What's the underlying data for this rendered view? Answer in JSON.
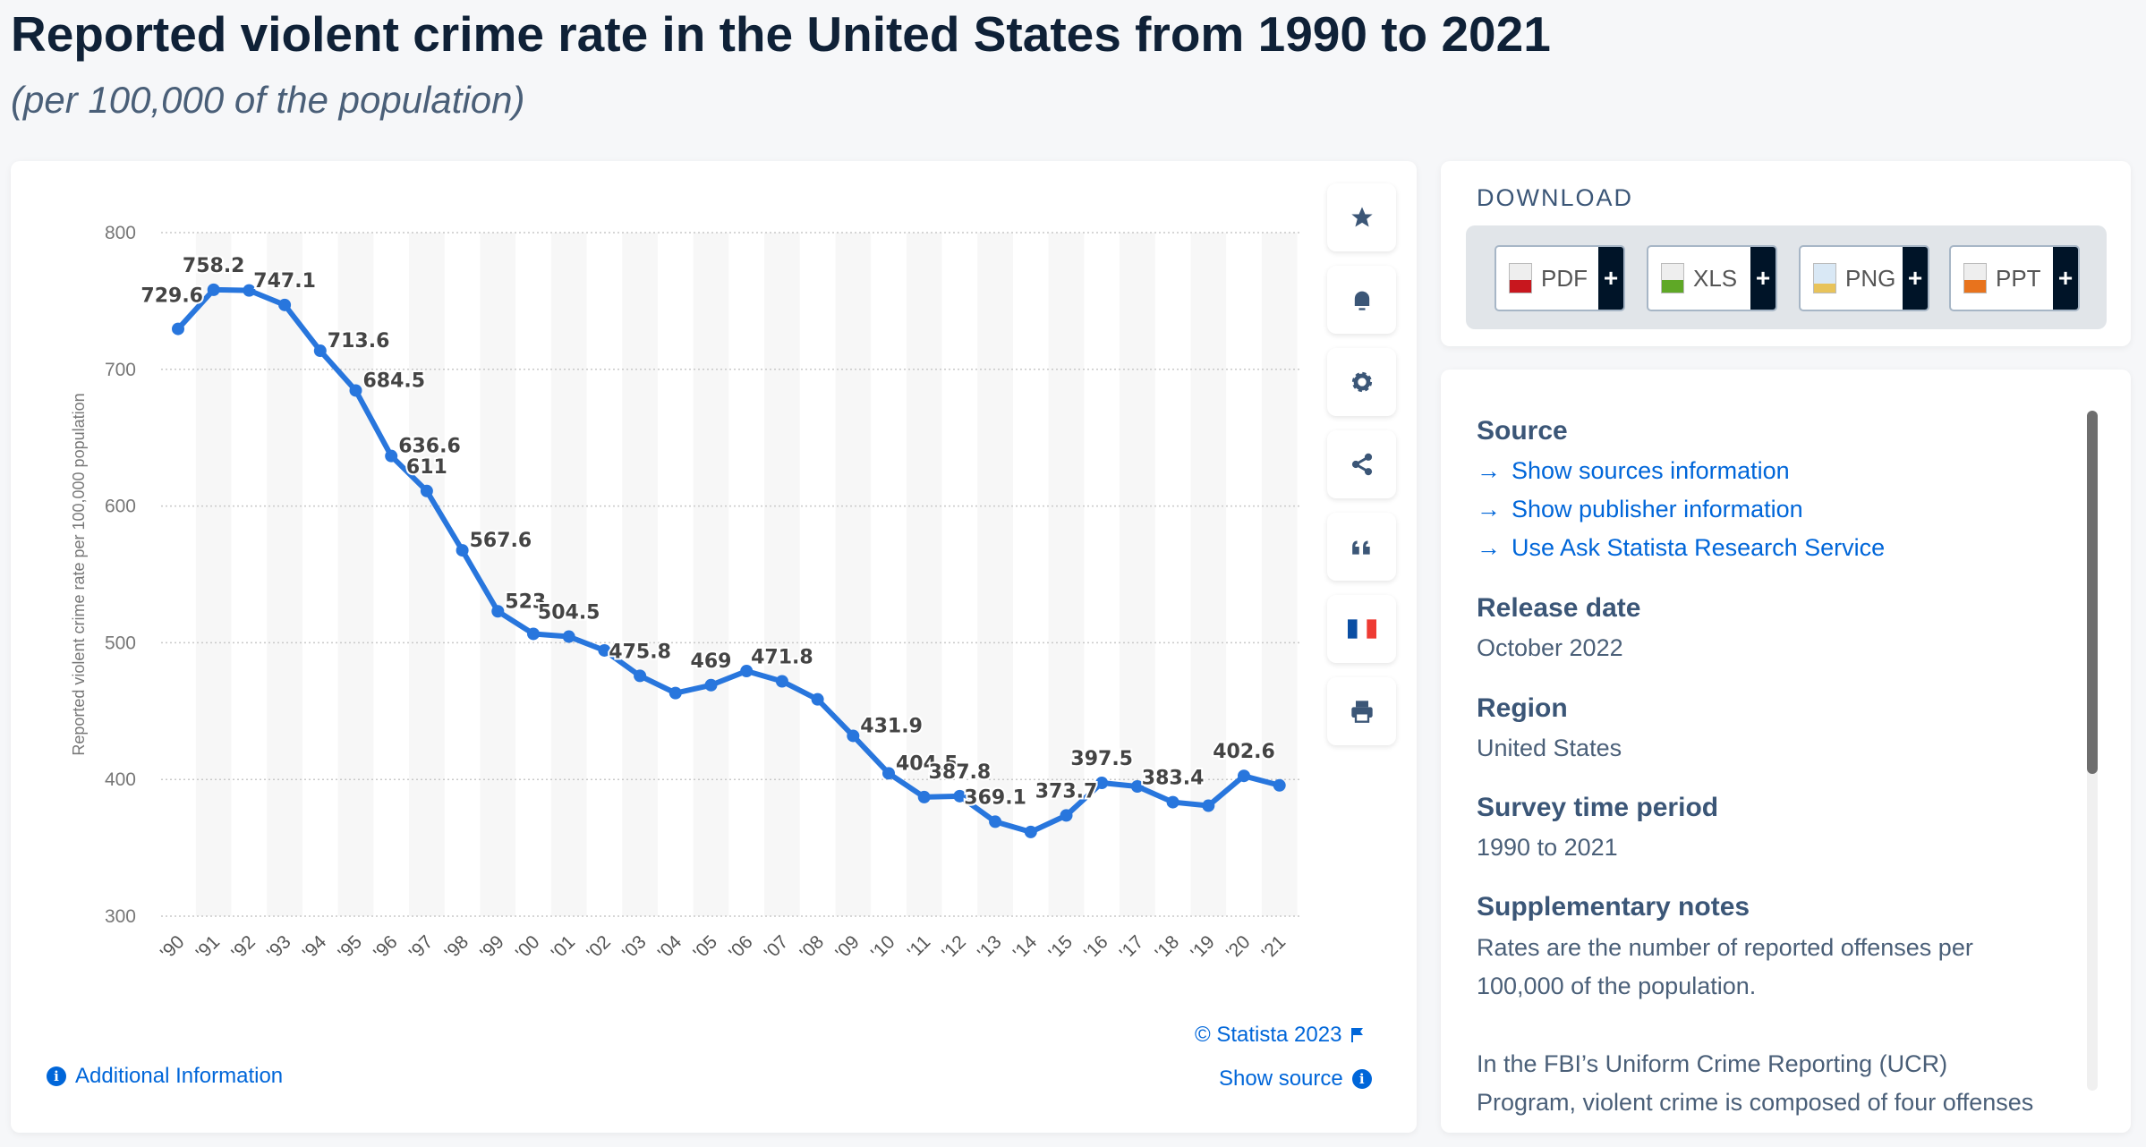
{
  "header": {
    "title": "Reported violent crime rate in the United States from 1990 to 2021",
    "subtitle": "(per 100,000 of the population)"
  },
  "chart_data": {
    "type": "line",
    "title": "",
    "ylabel": "Reported violent crime rate per 100,000 population",
    "xlabel": "",
    "ylim": [
      300,
      800
    ],
    "yticks": [
      300,
      400,
      500,
      600,
      700,
      800
    ],
    "grid": true,
    "color": "#2876dd",
    "categories": [
      "'90",
      "'91",
      "'92",
      "'93",
      "'94",
      "'95",
      "'96",
      "'97",
      "'98",
      "'99",
      "'00",
      "'01",
      "'02",
      "'03",
      "'04",
      "'05",
      "'06",
      "'07",
      "'08",
      "'09",
      "'10",
      "'11",
      "'12",
      "'13",
      "'14",
      "'15",
      "'16",
      "'17",
      "'18",
      "'19",
      "'20",
      "'21"
    ],
    "values": [
      729.6,
      758.2,
      757.7,
      747.1,
      713.6,
      684.5,
      636.6,
      611,
      567.6,
      523,
      506.5,
      504.5,
      494.4,
      475.8,
      463.2,
      469,
      479.3,
      471.8,
      458.6,
      431.9,
      404.5,
      387.1,
      387.8,
      369.1,
      361.6,
      373.7,
      397.5,
      394.9,
      383.4,
      380.8,
      402.6,
      395.7
    ],
    "data_labels": [
      "729.6",
      "758.2",
      null,
      "747.1",
      "713.6",
      "684.5",
      "636.6",
      "611",
      "567.6",
      "523",
      null,
      "504.5",
      null,
      "475.8",
      null,
      "469",
      null,
      "471.8",
      null,
      "431.9",
      "404.5",
      null,
      "387.8",
      "369.1",
      null,
      "373.7",
      "397.5",
      null,
      "383.4",
      null,
      "402.6",
      null
    ]
  },
  "chart_footer": {
    "copyright": "© Statista 2023",
    "show_source": "Show source",
    "additional_info": "Additional Information"
  },
  "side_tools": [
    "star-icon",
    "bell-icon",
    "gear-icon",
    "share-icon",
    "quote-icon",
    "french-flag-icon",
    "print-icon"
  ],
  "download": {
    "title": "DOWNLOAD",
    "buttons": [
      {
        "label": "PDF",
        "color": "#c8171e"
      },
      {
        "label": "XLS",
        "color": "#5fa826"
      },
      {
        "label": "PNG",
        "color": "#3d8fd9"
      },
      {
        "label": "PPT",
        "color": "#e8731d"
      }
    ],
    "plus": "+"
  },
  "info": {
    "source_heading": "Source",
    "links": [
      "Show sources information",
      "Show publisher information",
      "Use Ask Statista Research Service"
    ],
    "release_heading": "Release date",
    "release_value": "October 2022",
    "region_heading": "Region",
    "region_value": "United States",
    "period_heading": "Survey time period",
    "period_value": "1990 to 2021",
    "notes_heading": "Supplementary notes",
    "notes_text": "Rates are the number of reported offenses per 100,000 of the population.",
    "notes_text2": "In the FBI’s Uniform Crime Reporting (UCR) Program, violent crime is composed of four offenses"
  }
}
